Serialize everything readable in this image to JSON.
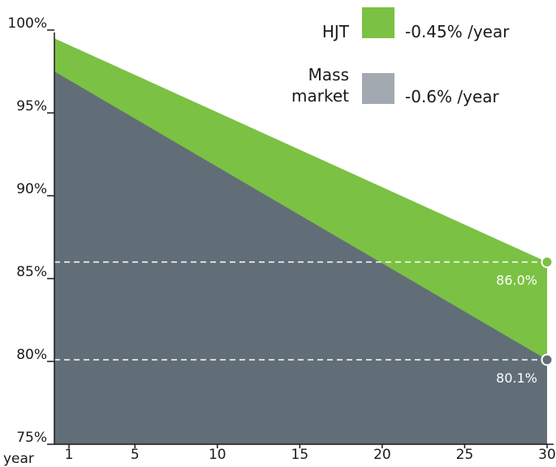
{
  "chart_data": {
    "type": "area",
    "x_axis_label": "year",
    "x_ticks": [
      1,
      5,
      10,
      15,
      20,
      25,
      30
    ],
    "xlim": [
      1,
      30
    ],
    "y_ticks": [
      "100%",
      "95%",
      "90%",
      "85%",
      "80%",
      "75%"
    ],
    "ylim": [
      75,
      100
    ],
    "series": [
      {
        "name": "HJT",
        "rate_label": "-0.45% /year",
        "color": "#7bc143",
        "x": [
          0.1,
          30
        ],
        "values": [
          99.5,
          86.0
        ],
        "end_label": "86.0%",
        "end_value": 86.0
      },
      {
        "name": "Mass market",
        "rate_label": "-0.6% /year",
        "color": "#616e77",
        "legend_color": "#a3a9b1",
        "x": [
          0.1,
          30
        ],
        "values": [
          97.5,
          80.1
        ],
        "end_label": "80.1%",
        "end_value": 80.1
      }
    ],
    "reference_lines": [
      86.0,
      80.1
    ],
    "legend_position": "top-right"
  }
}
